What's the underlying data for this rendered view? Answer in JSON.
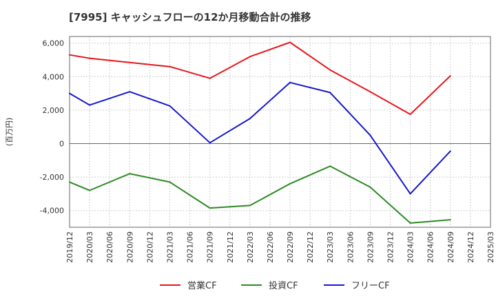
{
  "chart_data": {
    "type": "line",
    "title": "[7995]  キャッシュフローの12か月移動合計の推移",
    "ylabel": "(百万円)",
    "xlabel": "",
    "ylim": [
      -5000,
      6400
    ],
    "yticks": [
      -4000,
      -2000,
      0,
      2000,
      4000,
      6000
    ],
    "ytick_labels": [
      "-4,000",
      "-2,000",
      "0",
      "2,000",
      "4,000",
      "6,000"
    ],
    "categories": [
      "2019/12",
      "2020/03",
      "2020/06",
      "2020/09",
      "2020/12",
      "2021/03",
      "2021/06",
      "2021/09",
      "2021/12",
      "2022/03",
      "2022/06",
      "2022/09",
      "2022/12",
      "2023/03",
      "2023/06",
      "2023/09",
      "2023/12",
      "2024/03",
      "2024/06",
      "2024/09",
      "2024/12",
      "2025/03"
    ],
    "grid": true,
    "legend_position": "bottom",
    "series": [
      {
        "name": "営業CF",
        "color": "#e8141a",
        "values": [
          5300,
          5100,
          null,
          4850,
          null,
          4600,
          null,
          3900,
          null,
          5200,
          null,
          6050,
          null,
          4400,
          null,
          3100,
          null,
          1750,
          null,
          4050,
          null,
          null
        ]
      },
      {
        "name": "投資CF",
        "color": "#2a8a22",
        "values": [
          -2300,
          -2800,
          null,
          -1800,
          null,
          -2300,
          null,
          -3850,
          null,
          -3700,
          null,
          -2400,
          null,
          -1350,
          null,
          -2600,
          null,
          -4750,
          null,
          -4550,
          null,
          null
        ]
      },
      {
        "name": "フリーCF",
        "color": "#1515d0",
        "values": [
          3000,
          2300,
          null,
          3100,
          null,
          2250,
          null,
          50,
          null,
          1500,
          null,
          3650,
          null,
          3050,
          null,
          500,
          null,
          -3000,
          null,
          -450,
          null,
          null
        ]
      }
    ]
  }
}
